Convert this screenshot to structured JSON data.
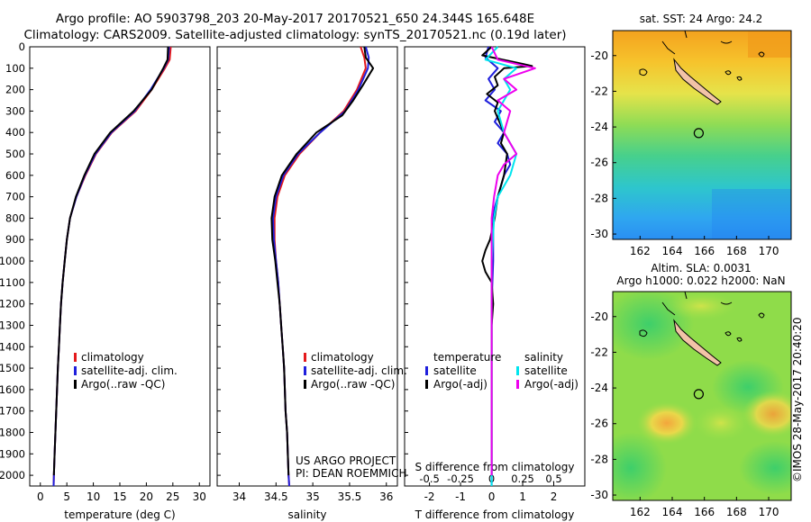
{
  "header": {
    "line1": "Argo profile: AO 5903798_203 20-May-2017 20170521_650 24.344S 165.648E",
    "line2": "Climatology: CARS2009. Satellite-adjusted climatology: synTS_20170521.nc (0.19d later)"
  },
  "side_text": "©IMOS 28-May-2017 20:40:20",
  "project": {
    "line1": "US ARGO PROJECT",
    "line2": "PI: DEAN ROEMMICH"
  },
  "colors": {
    "climatology": "#e41a1c",
    "satellite": "#1f1fdc",
    "argo": "#000000",
    "salinity_satellite": "#00e5ee",
    "salinity_argo": "#ee00ee"
  },
  "chart_data": [
    {
      "type": "line",
      "xlabel": "temperature (deg C)",
      "xlim": [
        -2,
        32
      ],
      "ylim": [
        2050,
        0
      ],
      "xticks": [
        "0",
        "5",
        "10",
        "15",
        "20",
        "25",
        "30"
      ],
      "yticks": [
        "0",
        "100",
        "200",
        "300",
        "400",
        "500",
        "600",
        "700",
        "800",
        "900",
        "1000",
        "1100",
        "1200",
        "1300",
        "1400",
        "1500",
        "1600",
        "1700",
        "1800",
        "1900",
        "2000"
      ],
      "legend": [
        "climatology",
        "satellite-adj. clim.",
        "Argo(..raw -QC)"
      ],
      "legend_position": "lower-center",
      "series": [
        {
          "name": "climatology",
          "color": "#e41a1c",
          "points": [
            [
              24.6,
              0
            ],
            [
              24.4,
              60
            ],
            [
              23.5,
              100
            ],
            [
              21,
              200
            ],
            [
              18,
              300
            ],
            [
              13.5,
              400
            ],
            [
              10.5,
              500
            ],
            [
              8.5,
              600
            ],
            [
              6.8,
              700
            ],
            [
              5.6,
              800
            ],
            [
              5,
              900
            ],
            [
              4.6,
              1000
            ],
            [
              4.2,
              1100
            ],
            [
              3.9,
              1200
            ],
            [
              3.7,
              1300
            ],
            [
              3.5,
              1400
            ],
            [
              3.3,
              1500
            ],
            [
              3.15,
              1600
            ],
            [
              3.0,
              1700
            ],
            [
              2.85,
              1800
            ],
            [
              2.7,
              1900
            ],
            [
              2.55,
              2000
            ],
            [
              2.5,
              2050
            ]
          ]
        },
        {
          "name": "satellite-adj. clim.",
          "color": "#1f1fdc",
          "points": [
            [
              24.3,
              0
            ],
            [
              24.1,
              60
            ],
            [
              23.3,
              100
            ],
            [
              20.8,
              200
            ],
            [
              17.8,
              300
            ],
            [
              13.4,
              400
            ],
            [
              10.4,
              500
            ],
            [
              8.4,
              600
            ],
            [
              6.8,
              700
            ],
            [
              5.6,
              800
            ],
            [
              5,
              900
            ],
            [
              4.6,
              1000
            ],
            [
              4.2,
              1100
            ],
            [
              3.9,
              1200
            ],
            [
              3.7,
              1300
            ],
            [
              3.5,
              1400
            ],
            [
              3.3,
              1500
            ],
            [
              3.15,
              1600
            ],
            [
              3.0,
              1700
            ],
            [
              2.85,
              1800
            ],
            [
              2.7,
              1900
            ],
            [
              2.55,
              2000
            ],
            [
              2.5,
              2050
            ]
          ]
        },
        {
          "name": "Argo(..raw -QC)",
          "color": "#000000",
          "points": [
            [
              24.1,
              0
            ],
            [
              24.0,
              60
            ],
            [
              23.2,
              100
            ],
            [
              21,
              200
            ],
            [
              17.6,
              300
            ],
            [
              13.2,
              400
            ],
            [
              10.2,
              500
            ],
            [
              8.3,
              600
            ],
            [
              6.7,
              700
            ],
            [
              5.6,
              800
            ],
            [
              5,
              900
            ],
            [
              4.6,
              1000
            ],
            [
              4.2,
              1100
            ],
            [
              3.9,
              1200
            ],
            [
              3.7,
              1300
            ],
            [
              3.5,
              1400
            ],
            [
              3.3,
              1500
            ],
            [
              3.15,
              1600
            ],
            [
              3.0,
              1700
            ],
            [
              2.85,
              1800
            ],
            [
              2.7,
              1900
            ],
            [
              2.55,
              2000
            ]
          ]
        }
      ]
    },
    {
      "type": "line",
      "xlabel": "salinity",
      "xlim": [
        33.7,
        36.15
      ],
      "ylim": [
        2050,
        0
      ],
      "xticks": [
        "34",
        "34.5",
        "35",
        "35.5",
        "36"
      ],
      "legend": [
        "climatology",
        "satellite-adj. clim.",
        "Argo(..raw -QC)"
      ],
      "legend_position": "lower-center",
      "series": [
        {
          "name": "climatology",
          "color": "#e41a1c",
          "points": [
            [
              35.65,
              0
            ],
            [
              35.7,
              50
            ],
            [
              35.72,
              100
            ],
            [
              35.6,
              200
            ],
            [
              35.42,
              300
            ],
            [
              35.1,
              400
            ],
            [
              34.82,
              500
            ],
            [
              34.62,
              600
            ],
            [
              34.52,
              700
            ],
            [
              34.48,
              800
            ],
            [
              34.48,
              900
            ],
            [
              34.5,
              1000
            ],
            [
              34.53,
              1100
            ],
            [
              34.55,
              1200
            ],
            [
              34.57,
              1300
            ],
            [
              34.59,
              1400
            ],
            [
              34.61,
              1500
            ],
            [
              34.62,
              1600
            ],
            [
              34.63,
              1700
            ],
            [
              34.65,
              1800
            ],
            [
              34.66,
              1900
            ],
            [
              34.67,
              2000
            ],
            [
              34.68,
              2050
            ]
          ]
        },
        {
          "name": "satellite-adj. clim.",
          "color": "#1f1fdc",
          "points": [
            [
              35.72,
              0
            ],
            [
              35.76,
              50
            ],
            [
              35.75,
              100
            ],
            [
              35.62,
              200
            ],
            [
              35.44,
              300
            ],
            [
              35.1,
              400
            ],
            [
              34.8,
              500
            ],
            [
              34.6,
              600
            ],
            [
              34.5,
              700
            ],
            [
              34.46,
              800
            ],
            [
              34.47,
              900
            ],
            [
              34.5,
              1000
            ],
            [
              34.53,
              1100
            ],
            [
              34.55,
              1200
            ],
            [
              34.57,
              1300
            ],
            [
              34.59,
              1400
            ],
            [
              34.61,
              1500
            ],
            [
              34.62,
              1600
            ],
            [
              34.63,
              1700
            ],
            [
              34.65,
              1800
            ],
            [
              34.66,
              1900
            ],
            [
              34.67,
              2000
            ],
            [
              34.68,
              2050
            ]
          ]
        },
        {
          "name": "Argo(..raw -QC)",
          "color": "#000000",
          "points": [
            [
              35.7,
              0
            ],
            [
              35.72,
              50
            ],
            [
              35.82,
              100
            ],
            [
              35.68,
              180
            ],
            [
              35.55,
              250
            ],
            [
              35.4,
              320
            ],
            [
              35.05,
              400
            ],
            [
              34.78,
              500
            ],
            [
              34.58,
              600
            ],
            [
              34.48,
              700
            ],
            [
              34.44,
              800
            ],
            [
              34.45,
              900
            ],
            [
              34.49,
              1000
            ],
            [
              34.52,
              1100
            ],
            [
              34.55,
              1200
            ],
            [
              34.57,
              1300
            ],
            [
              34.59,
              1400
            ],
            [
              34.61,
              1500
            ],
            [
              34.62,
              1600
            ],
            [
              34.63,
              1700
            ],
            [
              34.65,
              1800
            ],
            [
              34.66,
              1900
            ],
            [
              34.67,
              2000
            ]
          ]
        }
      ]
    },
    {
      "type": "line",
      "xlabel": "T difference from climatology",
      "xlabel_top": "S difference from climatology",
      "xlim": [
        -2.8,
        3.0
      ],
      "ylim": [
        2050,
        0
      ],
      "xticks": [
        "-2",
        "-1",
        "0",
        "1",
        "2"
      ],
      "xticks_top": [
        "-0.5",
        "-0.25",
        "0",
        "0.25",
        "0.5"
      ],
      "legend_headings": [
        "temperature",
        "salinity"
      ],
      "legend": [
        "satellite",
        "Argo(-adj)",
        "satellite",
        "Argo(-adj)"
      ],
      "legend_position": "lower-center",
      "series": [
        {
          "name": "satellite",
          "group": "temperature",
          "color": "#1f1fdc",
          "points": [
            [
              -0.1,
              0
            ],
            [
              -0.2,
              50
            ],
            [
              0.2,
              100
            ],
            [
              -0.1,
              150
            ],
            [
              0.1,
              200
            ],
            [
              -0.2,
              250
            ],
            [
              0.3,
              300
            ],
            [
              0.1,
              350
            ],
            [
              0.4,
              400
            ],
            [
              0.2,
              450
            ],
            [
              0.5,
              500
            ],
            [
              0.6,
              550
            ],
            [
              0.4,
              600
            ],
            [
              0.3,
              650
            ],
            [
              0.2,
              700
            ],
            [
              0.1,
              750
            ],
            [
              0.05,
              800
            ],
            [
              0.05,
              1000
            ],
            [
              0,
              1200
            ],
            [
              0,
              1500
            ],
            [
              0,
              1800
            ],
            [
              0,
              2000
            ],
            [
              0,
              2050
            ]
          ]
        },
        {
          "name": "Argo(-adj)",
          "group": "temperature",
          "color": "#000000",
          "points": [
            [
              0,
              0
            ],
            [
              -0.3,
              40
            ],
            [
              1.0,
              80
            ],
            [
              1.3,
              90
            ],
            [
              0.4,
              100
            ],
            [
              0.1,
              140
            ],
            [
              0.2,
              180
            ],
            [
              -0.15,
              220
            ],
            [
              0.2,
              260
            ],
            [
              0.1,
              300
            ],
            [
              0.4,
              400
            ],
            [
              0.3,
              450
            ],
            [
              0.5,
              500
            ],
            [
              0.4,
              600
            ],
            [
              0.2,
              700
            ],
            [
              0.1,
              800
            ],
            [
              -0.05,
              900
            ],
            [
              -0.2,
              950
            ],
            [
              -0.3,
              1000
            ],
            [
              -0.2,
              1050
            ],
            [
              0,
              1100
            ],
            [
              0.05,
              1200
            ],
            [
              0,
              1300
            ],
            [
              0,
              1500
            ],
            [
              0,
              1800
            ],
            [
              0,
              2000
            ]
          ]
        },
        {
          "name": "satellite",
          "group": "salinity",
          "color": "#00e5ee",
          "points": [
            [
              0.05,
              0
            ],
            [
              -0.05,
              60
            ],
            [
              0.2,
              100
            ],
            [
              0.1,
              150
            ],
            [
              0.15,
              200
            ],
            [
              0.05,
              300
            ],
            [
              0.1,
              400
            ],
            [
              0.2,
              500
            ],
            [
              0.15,
              600
            ],
            [
              0.05,
              700
            ],
            [
              0.02,
              800
            ],
            [
              0,
              1000
            ],
            [
              0,
              1500
            ],
            [
              0,
              2000
            ],
            [
              0,
              2050
            ]
          ]
        },
        {
          "name": "Argo(-adj)",
          "group": "salinity",
          "color": "#ee00ee",
          "points": [
            [
              0,
              0
            ],
            [
              0.05,
              60
            ],
            [
              0.35,
              100
            ],
            [
              0.1,
              150
            ],
            [
              0.2,
              200
            ],
            [
              0.05,
              250
            ],
            [
              0.15,
              300
            ],
            [
              0.1,
              400
            ],
            [
              0.2,
              500
            ],
            [
              0.1,
              550
            ],
            [
              0.05,
              600
            ],
            [
              0.02,
              700
            ],
            [
              0,
              800
            ],
            [
              0,
              1000
            ],
            [
              0,
              1500
            ],
            [
              0,
              2000
            ]
          ]
        }
      ]
    },
    {
      "type": "heatmap",
      "title": "sat. SST: 24 Argo: 24.2",
      "xlim": [
        160.3,
        171.4
      ],
      "ylim": [
        -30.3,
        -18.6
      ],
      "xticks": [
        "162",
        "164",
        "166",
        "168",
        "170"
      ],
      "yticks": [
        "-20",
        "-22",
        "-24",
        "-26",
        "-28",
        "-30"
      ],
      "argo_position": [
        165.648,
        -24.344
      ]
    },
    {
      "type": "heatmap",
      "title_lines": [
        "Altim. SLA: 0.0031",
        "Argo h1000: 0.022 h2000: NaN"
      ],
      "xlim": [
        160.3,
        171.4
      ],
      "ylim": [
        -30.3,
        -18.6
      ],
      "xticks": [
        "162",
        "164",
        "166",
        "168",
        "170"
      ],
      "yticks": [
        "-20",
        "-22",
        "-24",
        "-26",
        "-28",
        "-30"
      ],
      "argo_position": [
        165.648,
        -24.344
      ]
    }
  ]
}
